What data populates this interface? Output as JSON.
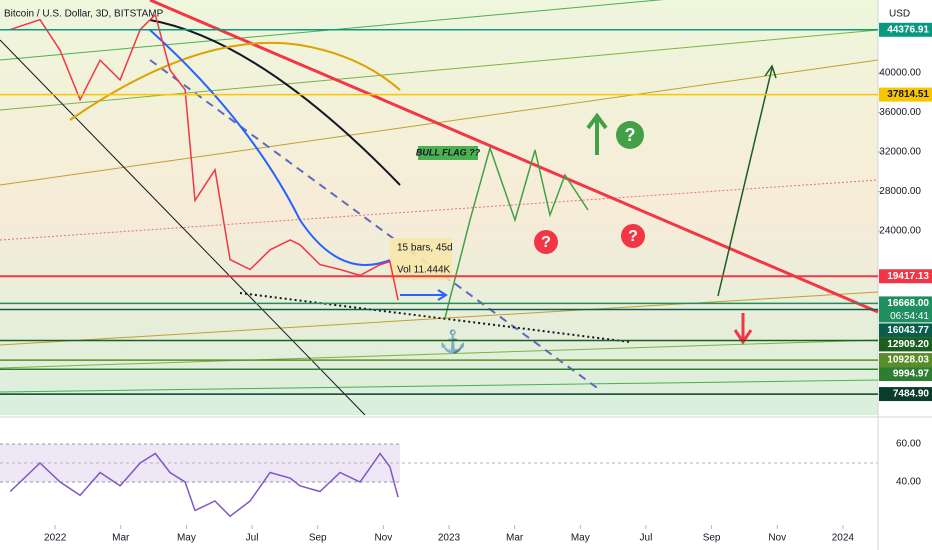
{
  "title": "Bitcoin / U.S. Dollar, 3D, BITSTAMP",
  "currency": "USD",
  "countdown": "06:54:41",
  "annotations": [
    "BULL FLAG ??",
    "15 bars, 45d",
    "Vol 11.444K"
  ],
  "chart_data": [
    {
      "type": "line",
      "color": "#f23645",
      "x": [
        -1.37,
        -0.46,
        0.15,
        0.76,
        1.37,
        1.98,
        2.59,
        3.05,
        3.5,
        3.96,
        4.26,
        4.87,
        5.33,
        5.94,
        6.55,
        7.16,
        7.46,
        8.07,
        8.68,
        9.29,
        9.9,
        10.2,
        10.45
      ],
      "values": [
        44400,
        45400,
        42300,
        37300,
        41300,
        39300,
        44400,
        45900,
        40300,
        38300,
        27100,
        30200,
        21100,
        20100,
        22100,
        23100,
        22600,
        20600,
        20100,
        19500,
        20600,
        20900,
        17000
      ],
      "xlim": [
        -1.68,
        25.07
      ],
      "xticks": [
        {
          "value": 0,
          "label": "2022"
        },
        {
          "value": 2,
          "label": "Mar"
        },
        {
          "value": 4,
          "label": "May"
        },
        {
          "value": 6,
          "label": "Jul"
        },
        {
          "value": 8,
          "label": "Sep"
        },
        {
          "value": 10,
          "label": "Nov"
        },
        {
          "value": 12,
          "label": "2023"
        },
        {
          "value": 14,
          "label": "Mar"
        },
        {
          "value": 16,
          "label": "May"
        },
        {
          "value": 18,
          "label": "Jul"
        },
        {
          "value": 20,
          "label": "Sep"
        },
        {
          "value": 22,
          "label": "Nov"
        },
        {
          "value": 24,
          "label": "2024"
        }
      ],
      "ylim": [
        5366,
        47393
      ],
      "yticks": [
        {
          "value": 24000,
          "label": "24000.00"
        },
        {
          "value": 28000,
          "label": "28000.00"
        },
        {
          "value": 32000,
          "label": "32000.00"
        },
        {
          "value": 36000,
          "label": "36000.00"
        },
        {
          "value": 40000,
          "label": "40000.00"
        }
      ],
      "levels": [
        {
          "value": 44376.91,
          "label": "44376.91",
          "color": "#089981"
        },
        {
          "value": 37814.51,
          "label": "37814.51",
          "color": "#f7c600"
        },
        {
          "value": 19417.13,
          "label": "19417.13",
          "color": "#f23645"
        },
        {
          "value": 16668.0,
          "label": "16668.00",
          "color": "#1f8f5f"
        },
        {
          "value": 16043.77,
          "label": "16043.77",
          "color": "#0b5d4b"
        },
        {
          "value": 12909.2,
          "label": "12909.20",
          "color": "#1b5e20"
        },
        {
          "value": 10928.03,
          "label": "10928.03",
          "color": "#5b8c2a"
        },
        {
          "value": 9994.97,
          "label": "9994.97",
          "color": "#2e7d32"
        },
        {
          "value": 7484.9,
          "label": "7484.90",
          "color": "#0b3d2e"
        }
      ]
    },
    {
      "type": "line",
      "color": "#7e57c2",
      "values": [
        35,
        50,
        40,
        33,
        45,
        38,
        50,
        55,
        45,
        40,
        25,
        30,
        22,
        30,
        45,
        42,
        38,
        35,
        45,
        40,
        55,
        48,
        32
      ],
      "ylim": [
        17.4,
        72.6
      ],
      "yticks": [
        {
          "value": 60,
          "label": "60.00"
        },
        {
          "value": 40,
          "label": "40.00"
        }
      ]
    }
  ]
}
